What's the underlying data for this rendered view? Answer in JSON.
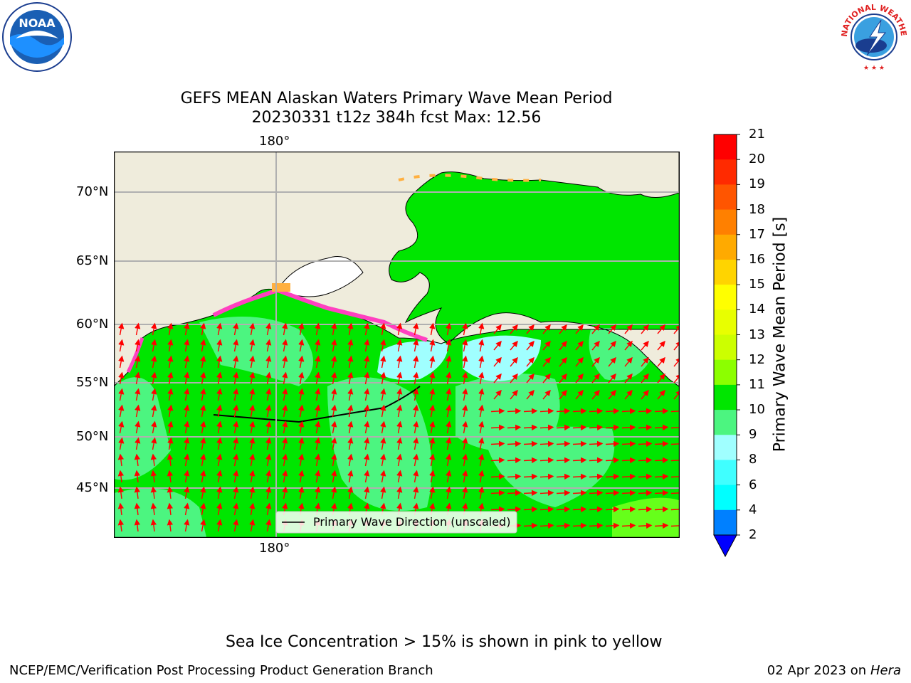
{
  "header": {
    "noaa_logo": {
      "icon": "noaa-logo",
      "text": "NOAA"
    },
    "nws_logo": {
      "icon": "nws-logo",
      "text": "NATIONAL WEATHER SERVICE"
    }
  },
  "title": {
    "line1": "GEFS MEAN Alaskan Waters Primary Wave Mean Period",
    "line2": "20230331 t12z 384h fcst   Max: 12.56"
  },
  "map": {
    "lon_label_top": "180°",
    "lon_label_bottom": "180°",
    "lat_labels": [
      "70°N",
      "65°N",
      "60°N",
      "55°N",
      "50°N",
      "45°N"
    ],
    "legend_text": "Primary Wave Direction (unscaled)",
    "colors": {
      "land": "#efecdc",
      "ocean_main": "#00e600",
      "ocean_light": "#4cf580",
      "ocean_pale": "#a0ffff",
      "arrow": "#ff0000",
      "ice": "#ff40c0"
    }
  },
  "colorbar": {
    "label": "Primary Wave Mean Period [s]",
    "ticks": [
      "21",
      "20",
      "19",
      "18",
      "17",
      "16",
      "15",
      "14",
      "13",
      "12",
      "11",
      "10",
      "9",
      "8",
      "6",
      "4",
      "2"
    ],
    "colors": [
      "#ff0000",
      "#ff2a00",
      "#ff5500",
      "#ff8000",
      "#ffaa00",
      "#ffd400",
      "#ffff00",
      "#e8ff00",
      "#ccff00",
      "#8cff00",
      "#00e600",
      "#4cf580",
      "#a0ffff",
      "#40ffff",
      "#00ffff",
      "#0080ff",
      "#0000ff"
    ]
  },
  "footer": {
    "note": "Sea Ice Concentration > 15% is shown in pink to yellow",
    "left": "NCEP/EMC/Verification Post Processing Product Generation Branch",
    "right_date": "02 Apr 2023 on ",
    "right_host": "Hera"
  }
}
